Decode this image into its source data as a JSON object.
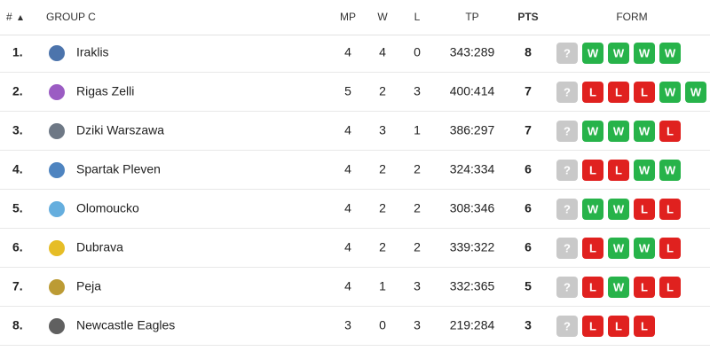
{
  "table": {
    "header": {
      "rank": "#",
      "group": "GROUP C",
      "mp": "MP",
      "w": "W",
      "l": "L",
      "tp": "TP",
      "pts": "PTS",
      "form": "FORM"
    },
    "rows": [
      {
        "rank": "1.",
        "team": "Iraklis",
        "mp": 4,
        "w": 4,
        "l": 0,
        "tp": "343:289",
        "pts": 8,
        "form": [
          "?",
          "W",
          "W",
          "W",
          "W"
        ]
      },
      {
        "rank": "2.",
        "team": "Rigas Zelli",
        "mp": 5,
        "w": 2,
        "l": 3,
        "tp": "400:414",
        "pts": 7,
        "form": [
          "?",
          "L",
          "L",
          "L",
          "W",
          "W"
        ]
      },
      {
        "rank": "3.",
        "team": "Dziki Warszawa",
        "mp": 4,
        "w": 3,
        "l": 1,
        "tp": "386:297",
        "pts": 7,
        "form": [
          "?",
          "W",
          "W",
          "W",
          "L"
        ]
      },
      {
        "rank": "4.",
        "team": "Spartak Pleven",
        "mp": 4,
        "w": 2,
        "l": 2,
        "tp": "324:334",
        "pts": 6,
        "form": [
          "?",
          "L",
          "L",
          "W",
          "W"
        ]
      },
      {
        "rank": "5.",
        "team": "Olomoucko",
        "mp": 4,
        "w": 2,
        "l": 2,
        "tp": "308:346",
        "pts": 6,
        "form": [
          "?",
          "W",
          "W",
          "L",
          "L"
        ]
      },
      {
        "rank": "6.",
        "team": "Dubrava",
        "mp": 4,
        "w": 2,
        "l": 2,
        "tp": "339:322",
        "pts": 6,
        "form": [
          "?",
          "L",
          "W",
          "W",
          "L"
        ]
      },
      {
        "rank": "7.",
        "team": "Peja",
        "mp": 4,
        "w": 1,
        "l": 3,
        "tp": "332:365",
        "pts": 5,
        "form": [
          "?",
          "L",
          "W",
          "L",
          "L"
        ]
      },
      {
        "rank": "8.",
        "team": "Newcastle Eagles",
        "mp": 3,
        "w": 0,
        "l": 3,
        "tp": "219:284",
        "pts": 3,
        "form": [
          "?",
          "L",
          "L",
          "L"
        ]
      }
    ]
  }
}
